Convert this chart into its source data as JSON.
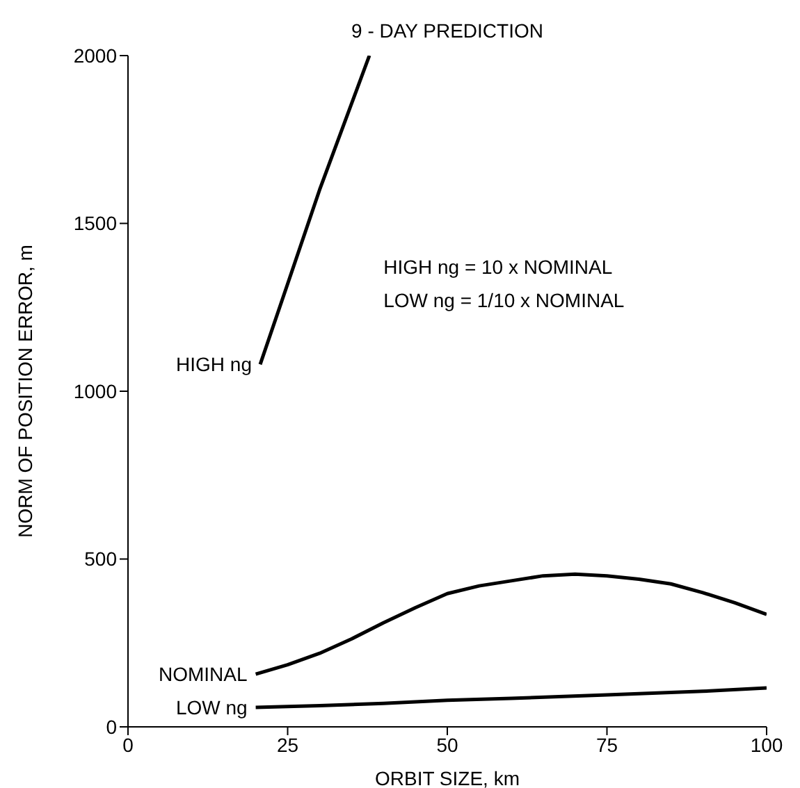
{
  "chart_data": {
    "type": "line",
    "title": "9 - DAY PREDICTION",
    "xlabel": "ORBIT SIZE, km",
    "ylabel": "NORM OF POSITION ERROR, m",
    "annotations": [
      "HIGH ng = 10 x NOMINAL",
      "LOW ng = 1/10 x NOMINAL"
    ],
    "xlim": [
      0,
      100
    ],
    "xticks": [
      0,
      25,
      50,
      75,
      100
    ],
    "ylim": [
      0,
      2000
    ],
    "yticks": [
      0,
      500,
      1000,
      1500,
      2000
    ],
    "grid": false,
    "legend": false,
    "marker": "none",
    "line_style": "solid",
    "series": [
      {
        "name": "HIGH ng",
        "color": "#000000",
        "x": [
          20.7,
          25,
          30,
          37.8
        ],
        "values": [
          1080,
          1320,
          1600,
          2000
        ]
      },
      {
        "name": "NOMINAL",
        "color": "#000000",
        "x": [
          20,
          25,
          30,
          35,
          40,
          45,
          50,
          55,
          60,
          65,
          70,
          75,
          80,
          85,
          90,
          95,
          100
        ],
        "values": [
          157,
          185,
          219,
          262,
          310,
          355,
          397,
          420,
          435,
          450,
          455,
          450,
          440,
          426,
          400,
          370,
          335
        ]
      },
      {
        "name": "LOW ng",
        "color": "#000000",
        "x": [
          20,
          30,
          40,
          50,
          60,
          75,
          90,
          100
        ],
        "values": [
          58,
          63,
          70,
          79,
          85,
          95,
          106,
          116
        ]
      }
    ]
  }
}
